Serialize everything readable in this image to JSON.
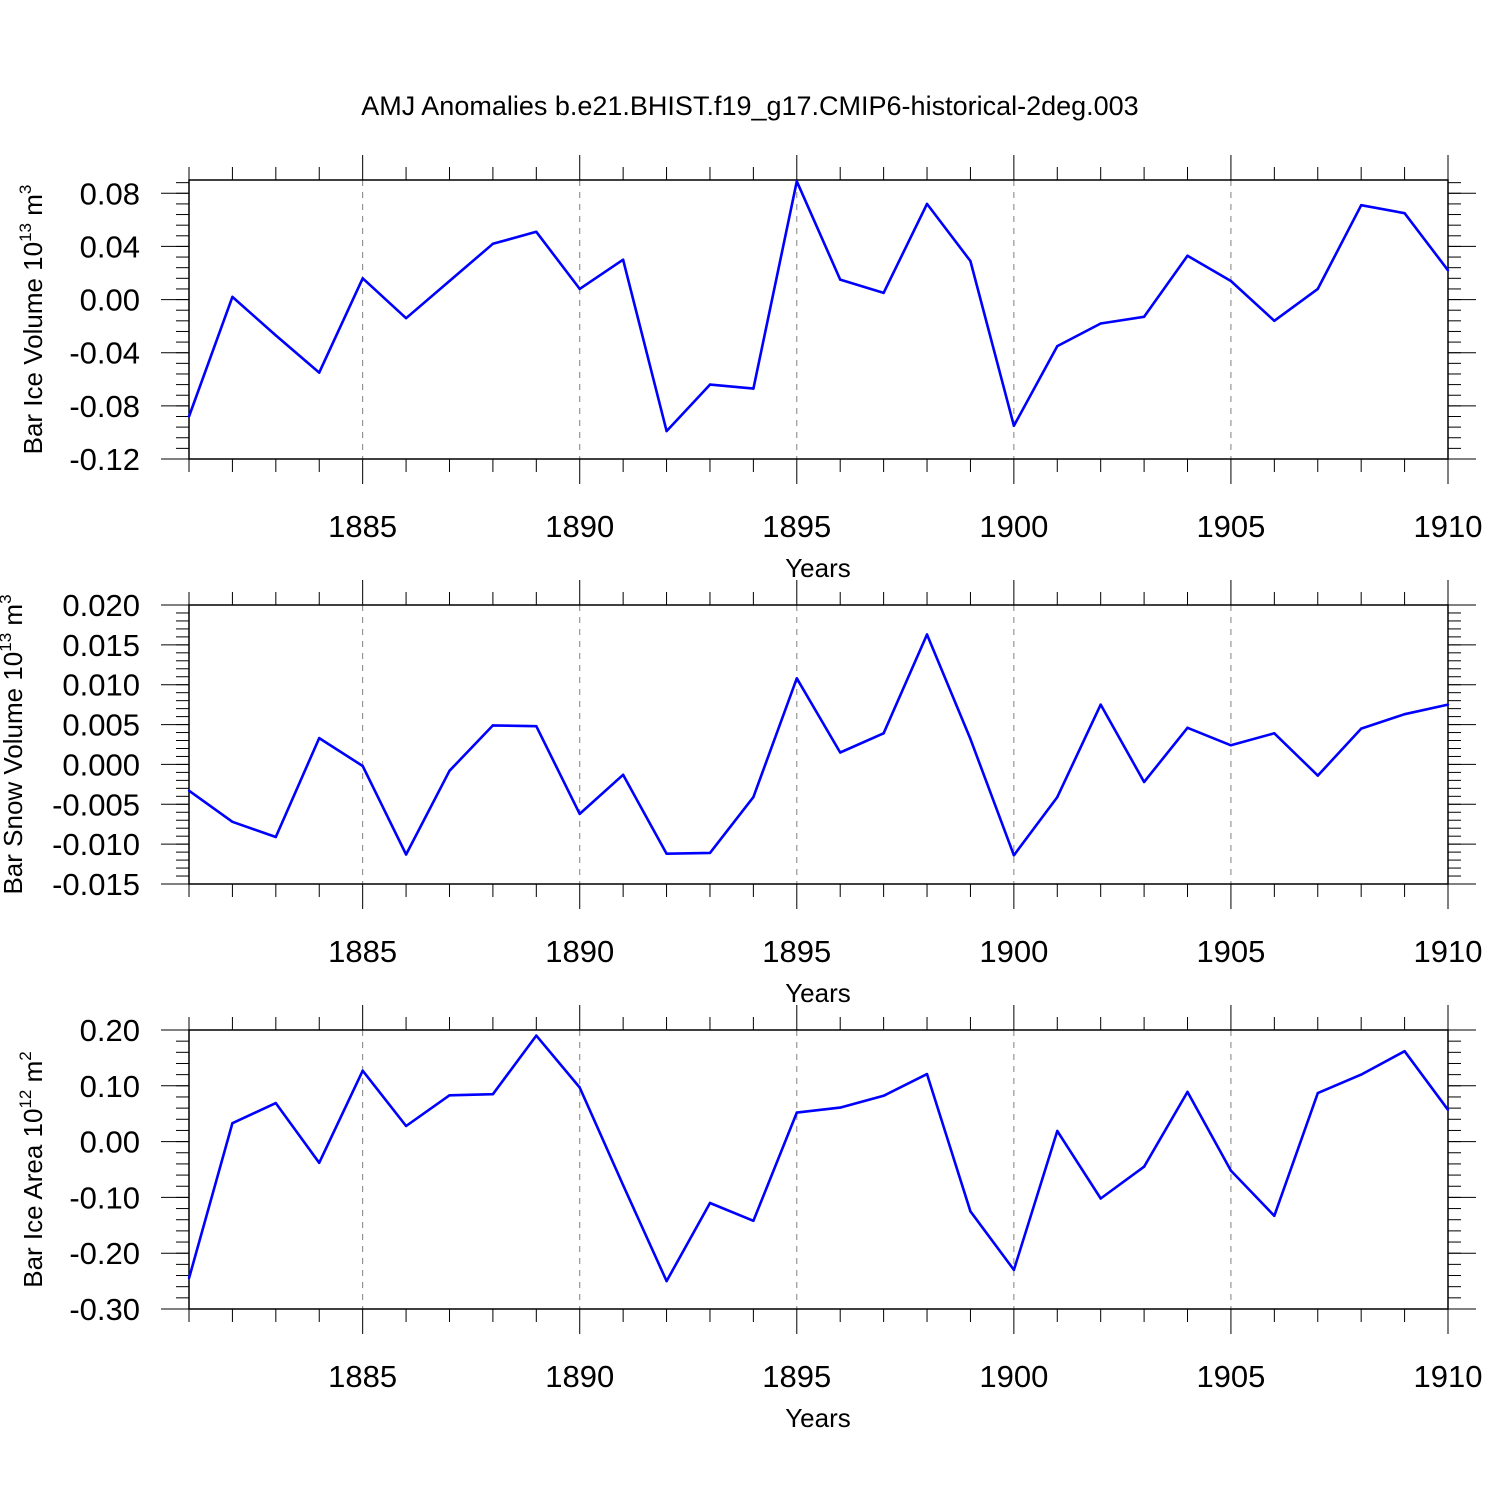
{
  "title": "AMJ Anomalies b.e21.BHIST.f19_g17.CMIP6-historical-2deg.003",
  "line_color": "#0000ff",
  "chart_data": [
    {
      "type": "line",
      "id": "ice-volume",
      "ylabel": {
        "text": "Bar Ice Volume 10",
        "exp": "13",
        "mid": " m",
        "unit_exp": "3"
      },
      "xlabel": "Years",
      "xlim": [
        1881,
        1910
      ],
      "ylim": [
        -0.12,
        0.09
      ],
      "yticks": [
        -0.12,
        -0.08,
        -0.04,
        0.0,
        0.04,
        0.08
      ],
      "ytick_labels": [
        "-0.12",
        "-0.08",
        "-0.04",
        "0.00",
        "0.04",
        "0.08"
      ],
      "yminor_step": 0.008,
      "xticks": [
        1885,
        1890,
        1895,
        1900,
        1905,
        1910
      ],
      "xtick_labels": [
        "1885",
        "1890",
        "1895",
        "1900",
        "1905",
        "1910"
      ],
      "x": [
        1881,
        1882,
        1883,
        1884,
        1885,
        1886,
        1887,
        1888,
        1889,
        1890,
        1891,
        1892,
        1893,
        1894,
        1895,
        1896,
        1897,
        1898,
        1899,
        1900,
        1901,
        1902,
        1903,
        1904,
        1905,
        1906,
        1907,
        1908,
        1909,
        1910
      ],
      "values": [
        -0.088,
        0.002,
        -0.027,
        -0.055,
        0.016,
        -0.014,
        0.014,
        0.042,
        0.051,
        0.008,
        0.03,
        -0.099,
        -0.064,
        -0.067,
        0.089,
        0.015,
        0.005,
        0.072,
        0.029,
        -0.095,
        -0.035,
        -0.018,
        -0.013,
        0.033,
        0.014,
        -0.016,
        0.008,
        0.071,
        0.065,
        0.022
      ]
    },
    {
      "type": "line",
      "id": "snow-volume",
      "ylabel": {
        "text": "Bar Snow Volume 10",
        "exp": "13",
        "mid": " m",
        "unit_exp": "3"
      },
      "xlabel": "Years",
      "xlim": [
        1881,
        1910
      ],
      "ylim": [
        -0.015,
        0.02
      ],
      "yticks": [
        -0.015,
        -0.01,
        -0.005,
        0.0,
        0.005,
        0.01,
        0.015,
        0.02
      ],
      "ytick_labels": [
        "-0.015",
        "-0.010",
        "-0.005",
        "0.000",
        "0.005",
        "0.010",
        "0.015",
        "0.020"
      ],
      "yminor_step": 0.001,
      "xticks": [
        1885,
        1890,
        1895,
        1900,
        1905,
        1910
      ],
      "xtick_labels": [
        "1885",
        "1890",
        "1895",
        "1900",
        "1905",
        "1910"
      ],
      "x": [
        1881,
        1882,
        1883,
        1884,
        1885,
        1886,
        1887,
        1888,
        1889,
        1890,
        1891,
        1892,
        1893,
        1894,
        1895,
        1896,
        1897,
        1898,
        1899,
        1900,
        1901,
        1902,
        1903,
        1904,
        1905,
        1906,
        1907,
        1908,
        1909,
        1910
      ],
      "values": [
        -0.0033,
        -0.0072,
        -0.0091,
        0.0033,
        -0.0002,
        -0.0113,
        -0.0008,
        0.0049,
        0.0048,
        -0.0062,
        -0.0013,
        -0.0112,
        -0.0111,
        -0.0041,
        0.0108,
        0.0015,
        0.0039,
        0.0163,
        0.0032,
        -0.0114,
        -0.0041,
        0.0075,
        -0.0022,
        0.0046,
        0.0024,
        0.0039,
        -0.0014,
        0.0045,
        0.0063,
        0.0075
      ]
    },
    {
      "type": "line",
      "id": "ice-area",
      "ylabel": {
        "text": "Bar Ice Area 10",
        "exp": "12",
        "mid": " m",
        "unit_exp": "2"
      },
      "xlabel": "Years",
      "xlim": [
        1881,
        1910
      ],
      "ylim": [
        -0.3,
        0.2
      ],
      "yticks": [
        -0.3,
        -0.2,
        -0.1,
        0.0,
        0.1,
        0.2
      ],
      "ytick_labels": [
        "-0.30",
        "-0.20",
        "-0.10",
        "0.00",
        "0.10",
        "0.20"
      ],
      "yminor_step": 0.02,
      "xticks": [
        1885,
        1890,
        1895,
        1900,
        1905,
        1910
      ],
      "xtick_labels": [
        "1885",
        "1890",
        "1895",
        "1900",
        "1905",
        "1910"
      ],
      "x": [
        1881,
        1882,
        1883,
        1884,
        1885,
        1886,
        1887,
        1888,
        1889,
        1890,
        1891,
        1892,
        1893,
        1894,
        1895,
        1896,
        1897,
        1898,
        1899,
        1900,
        1901,
        1902,
        1903,
        1904,
        1905,
        1906,
        1907,
        1908,
        1909,
        1910
      ],
      "values": [
        -0.245,
        0.033,
        0.069,
        -0.038,
        0.127,
        0.028,
        0.083,
        0.085,
        0.19,
        0.097,
        -0.078,
        -0.25,
        -0.11,
        -0.142,
        0.052,
        0.061,
        0.082,
        0.121,
        -0.125,
        -0.23,
        0.019,
        -0.102,
        -0.045,
        0.089,
        -0.052,
        -0.133,
        0.087,
        0.12,
        0.162,
        0.057
      ]
    }
  ]
}
